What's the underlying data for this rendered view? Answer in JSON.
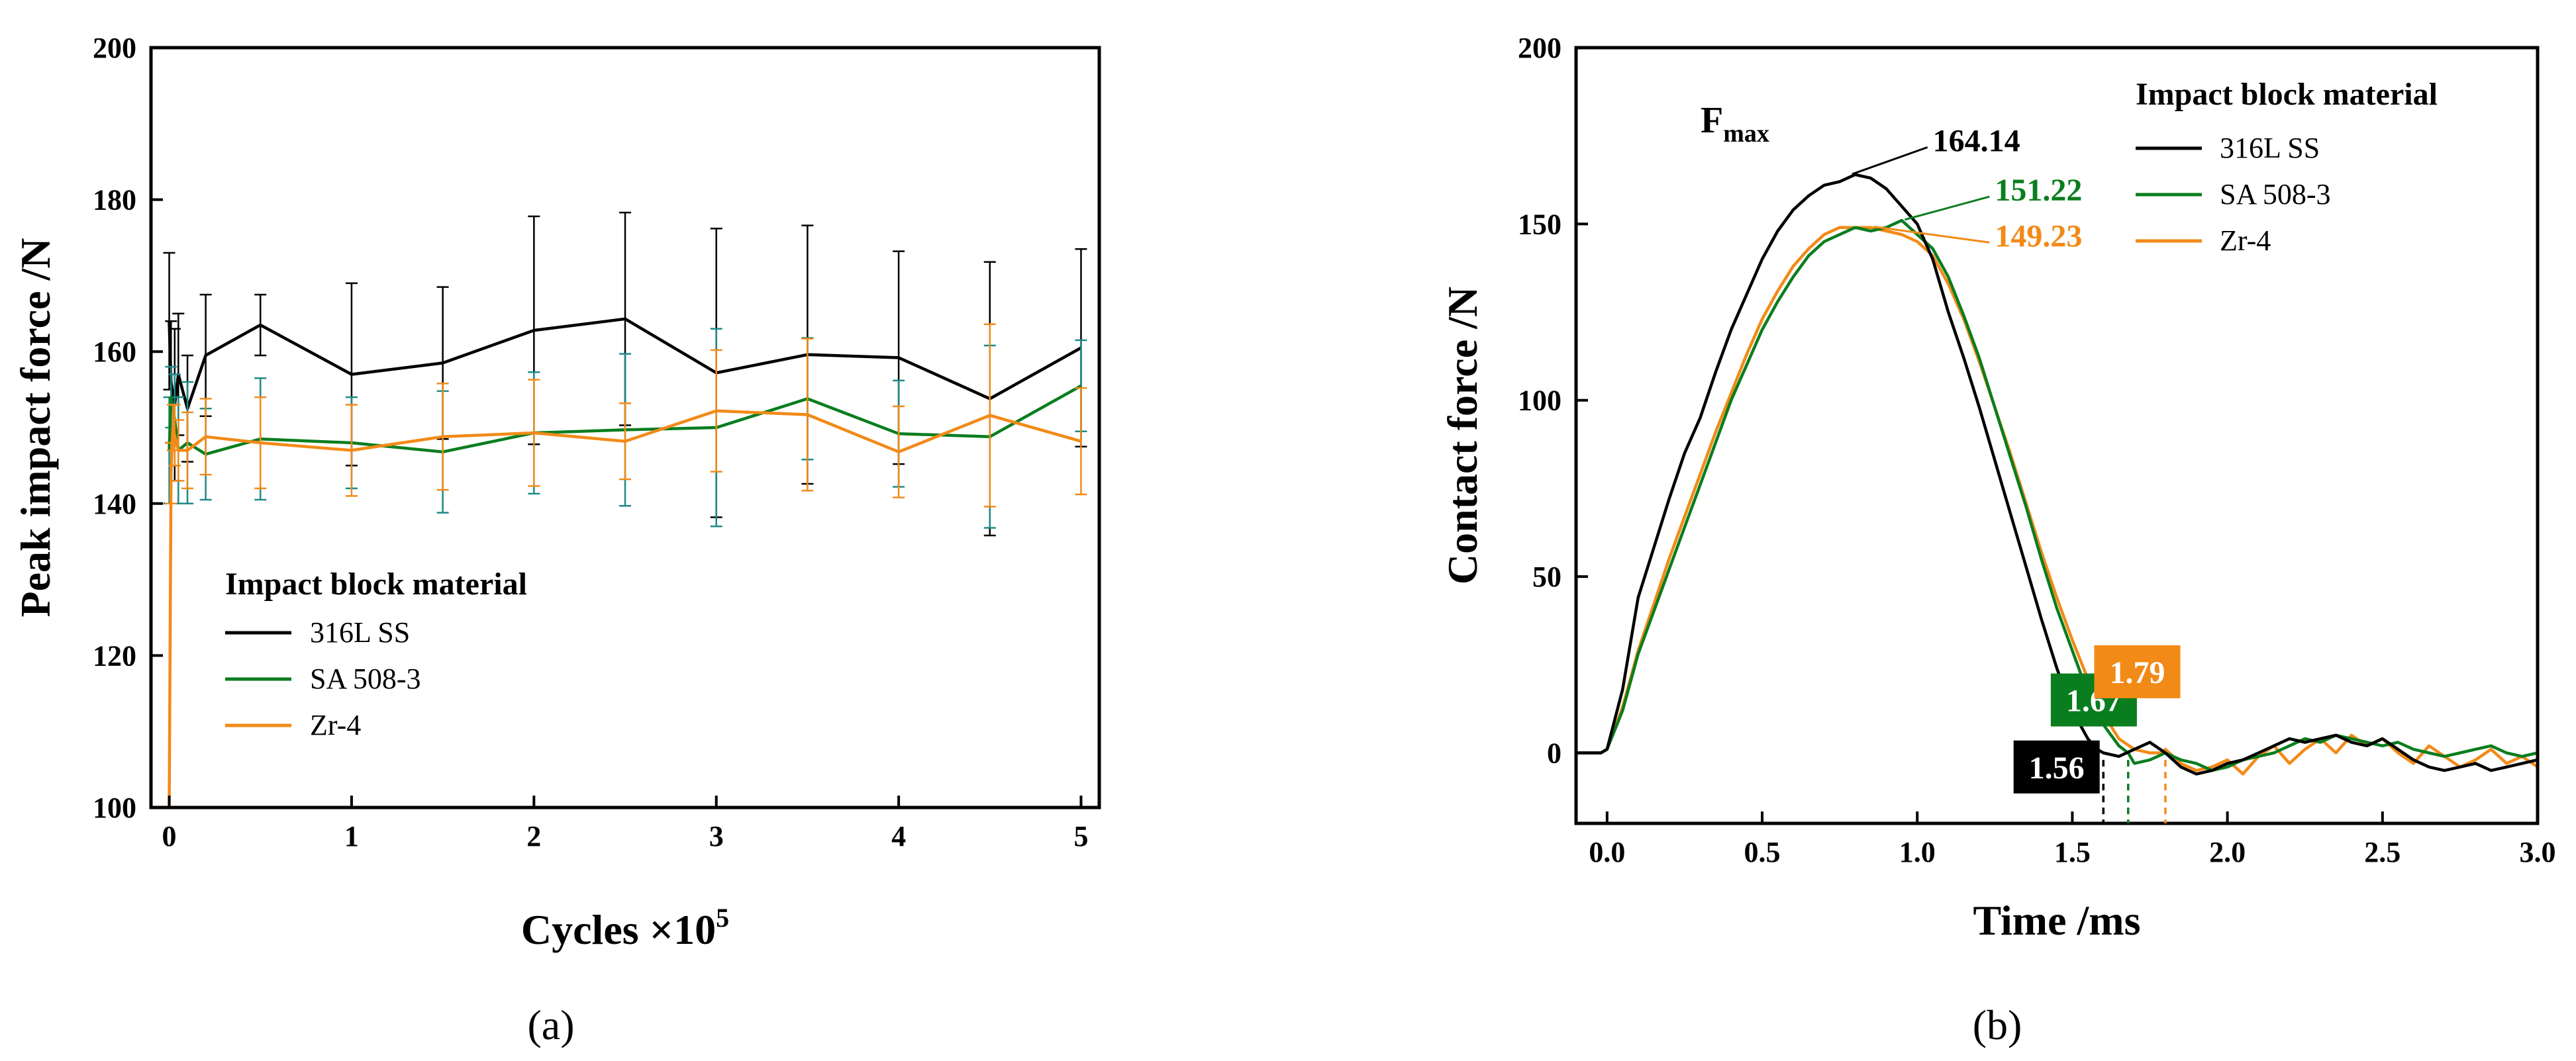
{
  "chart_data": [
    {
      "type": "line",
      "panel_label": "(a)",
      "xlabel_base": "Cycles ×10",
      "xlabel_exp": "5",
      "ylabel": "Peak impact force /N",
      "xlim": [
        -0.1,
        5.1
      ],
      "ylim": [
        100,
        200
      ],
      "xticks": [
        0,
        1,
        2,
        3,
        4,
        5
      ],
      "yticks": [
        100,
        120,
        140,
        160,
        180,
        200
      ],
      "legend_title": "Impact block material",
      "legend_position": "lower-left",
      "series": [
        {
          "name": "316L SS",
          "color": "#000000",
          "x": [
            0,
            0.01,
            0.03,
            0.05,
            0.1,
            0.2,
            0.5,
            1,
            1.5,
            2,
            2.5,
            3,
            3.5,
            4,
            4.5,
            5
          ],
          "y": [
            164,
            156,
            153,
            157,
            152.5,
            159.5,
            163.5,
            157,
            158.5,
            162.8,
            164.3,
            157.2,
            159.6,
            159.2,
            153.8,
            160.5
          ],
          "err": [
            9,
            8,
            10,
            8,
            7,
            8,
            4,
            12,
            10,
            15,
            14,
            19,
            17,
            14,
            18,
            13
          ]
        },
        {
          "name": "SA 508-3",
          "color": "#0a7d1f",
          "x": [
            0,
            0.01,
            0.03,
            0.05,
            0.1,
            0.2,
            0.5,
            1,
            1.5,
            2,
            2.5,
            3,
            3.5,
            4,
            4.5,
            5
          ],
          "y": [
            147,
            154,
            151,
            147,
            148,
            146.5,
            148.5,
            148,
            146.8,
            149.3,
            149.7,
            150,
            153.8,
            149.2,
            148.8,
            155.5
          ],
          "err": [
            7,
            4,
            6,
            7,
            8,
            6,
            8,
            6,
            8,
            8,
            10,
            13,
            8,
            7,
            12,
            6
          ]
        },
        {
          "name": "Zr-4",
          "color": "#f28a17",
          "x": [
            0,
            0.01,
            0.02,
            0.03,
            0.05,
            0.1,
            0.2,
            0.5,
            1,
            1.5,
            2,
            2.5,
            3,
            3.5,
            4,
            4.5,
            5
          ],
          "y": [
            100,
            144,
            150,
            149,
            147,
            147,
            148.8,
            148,
            147,
            148.8,
            149.3,
            148.2,
            152.2,
            151.7,
            146.8,
            151.6,
            148.2
          ],
          "err": [
            0,
            4,
            3,
            4,
            4,
            5,
            5,
            6,
            6,
            7,
            7,
            5,
            8,
            10,
            6,
            12,
            7
          ]
        }
      ]
    },
    {
      "type": "line",
      "panel_label": "(b)",
      "xlabel": "Time /ms",
      "ylabel": "Contact force /N",
      "xlim": [
        -0.1,
        3.0
      ],
      "ylim": [
        -20,
        200
      ],
      "xticks": [
        0.0,
        0.5,
        1.0,
        1.5,
        2.0,
        2.5,
        3.0
      ],
      "xtick_labels": [
        "0.0",
        "0.5",
        "1.0",
        "1.5",
        "2.0",
        "2.5",
        "3.0"
      ],
      "yticks": [
        0,
        50,
        100,
        150,
        200
      ],
      "legend_title": "Impact block material",
      "legend_position": "top-right",
      "fmax_label": "F",
      "fmax_sub": "max",
      "series": [
        {
          "name": "316L SS",
          "color": "#000000",
          "t": [
            -0.1,
            -0.02,
            0,
            0.05,
            0.1,
            0.15,
            0.2,
            0.25,
            0.3,
            0.35,
            0.4,
            0.45,
            0.5,
            0.55,
            0.6,
            0.65,
            0.7,
            0.75,
            0.8,
            0.85,
            0.9,
            0.95,
            1.0,
            1.05,
            1.1,
            1.15,
            1.2,
            1.25,
            1.3,
            1.35,
            1.4,
            1.45,
            1.5,
            1.55,
            1.58,
            1.6,
            1.65,
            1.7,
            1.75,
            1.8,
            1.85,
            1.9,
            1.95,
            2.0,
            2.05,
            2.1,
            2.15,
            2.2,
            2.25,
            2.3,
            2.35,
            2.4,
            2.45,
            2.5,
            2.55,
            2.6,
            2.65,
            2.7,
            2.75,
            2.8,
            2.85,
            2.9,
            2.95,
            3.0
          ],
          "f": [
            0,
            0,
            1,
            18,
            44,
            58,
            72,
            85,
            95,
            108,
            120,
            130,
            140,
            148,
            154,
            158,
            161,
            162,
            164,
            163,
            160,
            155,
            150,
            140,
            125,
            112,
            98,
            83,
            68,
            53,
            38,
            24,
            12,
            4,
            1,
            0,
            -1,
            1,
            3,
            0,
            -4,
            -6,
            -5,
            -3,
            -2,
            0,
            2,
            4,
            3,
            4,
            5,
            3,
            2,
            4,
            1,
            -2,
            -4,
            -5,
            -4,
            -3,
            -5,
            -4,
            -3,
            -2
          ]
        },
        {
          "name": "SA 508-3",
          "color": "#0a7d1f",
          "t": [
            -0.1,
            -0.02,
            0,
            0.05,
            0.1,
            0.15,
            0.2,
            0.25,
            0.3,
            0.35,
            0.4,
            0.45,
            0.5,
            0.55,
            0.6,
            0.65,
            0.7,
            0.75,
            0.8,
            0.85,
            0.9,
            0.95,
            1.0,
            1.05,
            1.1,
            1.15,
            1.2,
            1.25,
            1.3,
            1.35,
            1.4,
            1.45,
            1.5,
            1.55,
            1.6,
            1.65,
            1.68,
            1.7,
            1.75,
            1.8,
            1.85,
            1.9,
            1.95,
            2.0,
            2.05,
            2.1,
            2.15,
            2.2,
            2.25,
            2.3,
            2.35,
            2.4,
            2.45,
            2.5,
            2.55,
            2.6,
            2.65,
            2.7,
            2.75,
            2.8,
            2.85,
            2.9,
            2.95,
            3.0
          ],
          "f": [
            0,
            0,
            1,
            12,
            28,
            40,
            52,
            64,
            76,
            88,
            100,
            110,
            120,
            128,
            135,
            141,
            145,
            147,
            149,
            148,
            149,
            151,
            147,
            143,
            135,
            124,
            112,
            98,
            84,
            70,
            55,
            41,
            29,
            17,
            8,
            2,
            0,
            -3,
            -2,
            0,
            -2,
            -3,
            -5,
            -4,
            -2,
            -1,
            0,
            2,
            4,
            3,
            5,
            4,
            3,
            2,
            3,
            1,
            0,
            -1,
            0,
            1,
            2,
            0,
            -1,
            0
          ]
        },
        {
          "name": "Zr-4",
          "color": "#f28a17",
          "t": [
            -0.1,
            -0.02,
            0,
            0.05,
            0.1,
            0.15,
            0.2,
            0.25,
            0.3,
            0.35,
            0.4,
            0.45,
            0.5,
            0.55,
            0.6,
            0.65,
            0.7,
            0.75,
            0.8,
            0.85,
            0.9,
            0.95,
            1.0,
            1.05,
            1.1,
            1.15,
            1.2,
            1.25,
            1.3,
            1.35,
            1.4,
            1.45,
            1.5,
            1.55,
            1.6,
            1.65,
            1.7,
            1.75,
            1.79,
            1.8,
            1.85,
            1.9,
            1.95,
            2.0,
            2.05,
            2.1,
            2.15,
            2.2,
            2.25,
            2.3,
            2.35,
            2.4,
            2.45,
            2.5,
            2.55,
            2.6,
            2.65,
            2.7,
            2.75,
            2.8,
            2.85,
            2.9,
            2.95,
            3.0
          ],
          "f": [
            0,
            0,
            1,
            13,
            29,
            42,
            55,
            67,
            79,
            91,
            102,
            113,
            123,
            131,
            138,
            143,
            147,
            149,
            149,
            149,
            148,
            147,
            145,
            141,
            133,
            123,
            111,
            98,
            85,
            71,
            57,
            44,
            32,
            21,
            11,
            4,
            1,
            0,
            0,
            1,
            -3,
            -5,
            -4,
            -2,
            -6,
            -1,
            2,
            -3,
            1,
            4,
            0,
            5,
            2,
            4,
            0,
            -3,
            2,
            -1,
            -4,
            -2,
            1,
            -3,
            -1,
            -4
          ]
        }
      ],
      "annotations": [
        {
          "series": "316L SS",
          "text": "164.14",
          "at": [
            0.79,
            164.14
          ],
          "label_at": [
            1.05,
            174
          ]
        },
        {
          "series": "SA 508-3",
          "text": "151.22",
          "at": [
            0.96,
            151.22
          ],
          "label_at": [
            1.25,
            160
          ]
        },
        {
          "series": "Zr-4",
          "text": "149.23",
          "at": [
            0.86,
            149.23
          ],
          "label_at": [
            1.25,
            147
          ]
        }
      ],
      "end_times": [
        {
          "series": "316L SS",
          "value": 1.56,
          "label": "1.56",
          "line_x": 1.6,
          "box_at": [
            1.46,
            -4
          ]
        },
        {
          "series": "SA 508-3",
          "value": 1.67,
          "label": "1.67",
          "line_x": 1.68,
          "box_at": [
            1.58,
            15
          ]
        },
        {
          "series": "Zr-4",
          "value": 1.79,
          "label": "1.79",
          "line_x": 1.8,
          "box_at": [
            1.72,
            23
          ]
        }
      ]
    }
  ]
}
